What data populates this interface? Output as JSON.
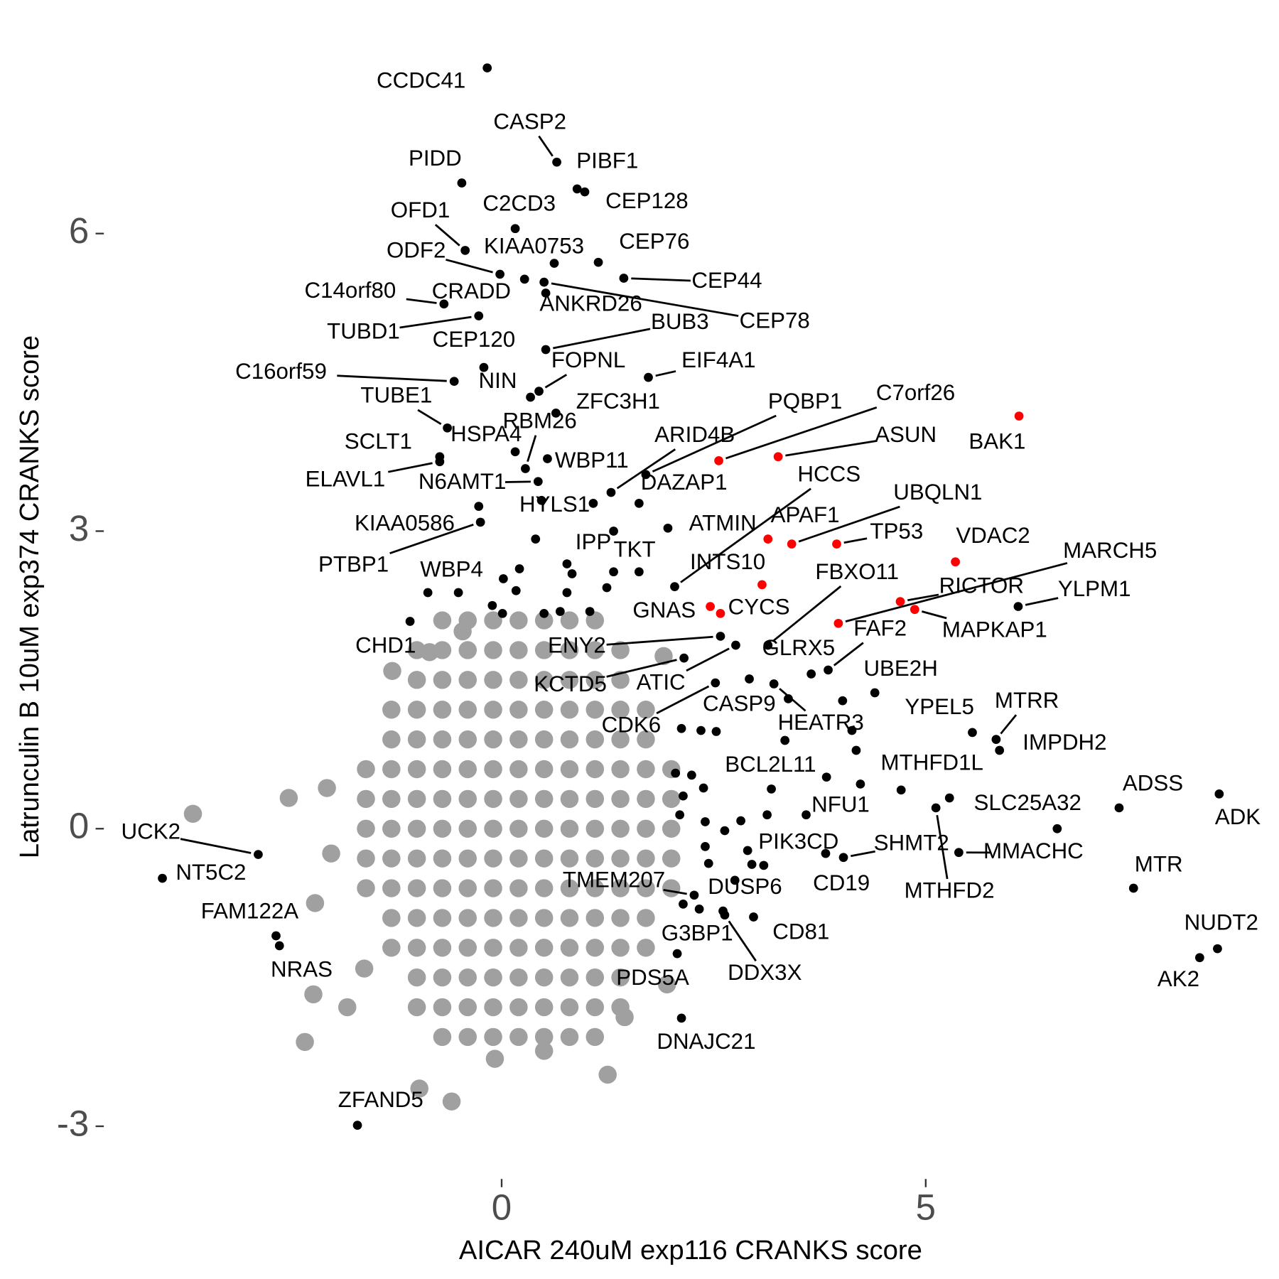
{
  "chart_data": {
    "type": "scatter",
    "xlabel": "AICAR 240uM exp116 CRANKS score",
    "ylabel": "Latrunculin B 10uM exp374 CRANKS score",
    "xlim": [
      -4.7,
      9.0
    ],
    "ylim": [
      -3.3,
      7.9
    ],
    "xticks": [
      0,
      5
    ],
    "yticks": [
      -3,
      0,
      3,
      6
    ],
    "grid": false,
    "series": [
      {
        "color": "#a0a0a0",
        "x": [
          -0.7,
          -0.4,
          -0.1,
          0.2,
          0.5,
          0.8,
          1.1,
          -1.0,
          -0.7,
          -0.4,
          -0.1,
          0.2,
          0.5,
          0.8,
          1.1,
          1.4,
          -1.0,
          -0.7,
          -0.4,
          -0.1,
          0.2,
          0.5,
          0.8,
          1.1,
          1.4,
          -1.3,
          -1.0,
          -0.7,
          -0.4,
          -0.1,
          0.2,
          0.5,
          0.8,
          1.1,
          1.4,
          1.7,
          -1.3,
          -1.0,
          -0.7,
          -0.4,
          -0.1,
          0.2,
          0.5,
          0.8,
          1.1,
          1.4,
          1.7,
          -1.6,
          -1.3,
          -1.0,
          -0.7,
          -0.4,
          -0.1,
          0.2,
          0.5,
          0.8,
          1.1,
          1.4,
          1.7,
          2.0,
          -1.6,
          -1.3,
          -1.0,
          -0.7,
          -0.4,
          -0.1,
          0.2,
          0.5,
          0.8,
          1.1,
          1.4,
          1.7,
          2.0,
          -1.6,
          -1.3,
          -1.0,
          -0.7,
          -0.4,
          -0.1,
          0.2,
          0.5,
          0.8,
          1.1,
          1.4,
          1.7,
          2.0,
          -1.6,
          -1.3,
          -1.0,
          -0.7,
          -0.4,
          -0.1,
          0.2,
          0.5,
          0.8,
          1.1,
          1.4,
          1.7,
          2.0,
          -1.6,
          -1.3,
          -1.0,
          -0.7,
          -0.4,
          -0.1,
          0.2,
          0.5,
          0.8,
          1.1,
          1.4,
          1.7,
          2.0,
          -1.3,
          -1.0,
          -0.7,
          -0.4,
          -0.1,
          0.2,
          0.5,
          0.8,
          1.1,
          1.4,
          1.7,
          -1.3,
          -1.0,
          -0.7,
          -0.4,
          -0.1,
          0.2,
          0.5,
          0.8,
          1.1,
          1.4,
          1.7,
          -1.0,
          -0.7,
          -0.4,
          -0.1,
          0.2,
          0.5,
          0.8,
          1.1,
          1.4,
          -1.0,
          -0.7,
          -0.4,
          -0.1,
          0.2,
          0.5,
          0.8,
          1.1,
          1.4,
          -0.7,
          -0.4,
          -0.1,
          0.2,
          0.5,
          0.8,
          1.1,
          -3.64,
          -2.51,
          -0.59,
          -0.97,
          1.25,
          -2.32,
          -2.22,
          -1.82,
          1.45,
          -1.29,
          -0.85,
          1.91,
          1.95,
          -2.2,
          -2.01,
          -2.06,
          -1.62,
          -0.08,
          0.5,
          -0.46
        ],
        "y": [
          2.1,
          2.1,
          2.1,
          2.1,
          2.1,
          2.1,
          2.1,
          1.8,
          1.8,
          1.8,
          1.8,
          1.8,
          1.8,
          1.8,
          1.8,
          1.8,
          1.5,
          1.5,
          1.5,
          1.5,
          1.5,
          1.5,
          1.5,
          1.5,
          1.5,
          1.2,
          1.2,
          1.2,
          1.2,
          1.2,
          1.2,
          1.2,
          1.2,
          1.2,
          1.2,
          1.2,
          0.9,
          0.9,
          0.9,
          0.9,
          0.9,
          0.9,
          0.9,
          0.9,
          0.9,
          0.9,
          0.9,
          0.6,
          0.6,
          0.6,
          0.6,
          0.6,
          0.6,
          0.6,
          0.6,
          0.6,
          0.6,
          0.6,
          0.6,
          0.6,
          0.3,
          0.3,
          0.3,
          0.3,
          0.3,
          0.3,
          0.3,
          0.3,
          0.3,
          0.3,
          0.3,
          0.3,
          0.3,
          0,
          0,
          0,
          0,
          0,
          0,
          0,
          0,
          0,
          0,
          0,
          0,
          0,
          -0.3,
          -0.3,
          -0.3,
          -0.3,
          -0.3,
          -0.3,
          -0.3,
          -0.3,
          -0.3,
          -0.3,
          -0.3,
          -0.3,
          -0.3,
          -0.6,
          -0.6,
          -0.6,
          -0.6,
          -0.6,
          -0.6,
          -0.6,
          -0.6,
          -0.6,
          -0.6,
          -0.6,
          -0.6,
          -0.6,
          -0.9,
          -0.9,
          -0.9,
          -0.9,
          -0.9,
          -0.9,
          -0.9,
          -0.9,
          -0.9,
          -0.9,
          -0.9,
          -1.2,
          -1.2,
          -1.2,
          -1.2,
          -1.2,
          -1.2,
          -1.2,
          -1.2,
          -1.2,
          -1.2,
          -1.2,
          -1.5,
          -1.5,
          -1.5,
          -1.5,
          -1.5,
          -1.5,
          -1.5,
          -1.5,
          -1.5,
          -1.8,
          -1.8,
          -1.8,
          -1.8,
          -1.8,
          -1.8,
          -1.8,
          -1.8,
          -1.8,
          -2.1,
          -2.1,
          -2.1,
          -2.1,
          -2.1,
          -2.1,
          -2.1,
          0.15,
          0.31,
          -2.75,
          -2.62,
          -2.48,
          -2.15,
          -1.67,
          -1.8,
          -1.9,
          1.59,
          1.78,
          1.74,
          -1.57,
          -0.75,
          -0.25,
          0.41,
          -1.41,
          -2.32,
          -2.24,
          1.99
        ]
      },
      {
        "color": "#000000",
        "x": [
          2.35,
          2.12,
          2.53,
          2.05,
          2.24,
          2.38,
          2.14,
          2.1,
          2.4,
          2.63,
          2.82,
          3.13,
          2.4,
          2.44,
          2.14,
          2.33,
          3.18,
          4.18,
          4.23,
          6.55,
          4.02,
          4.13,
          3.34,
          3.38,
          2.9,
          2.95,
          0.21,
          0.17,
          0.01,
          -0.11,
          -0.87,
          0.77,
          0.69,
          1.04,
          1.24,
          1.62,
          0.4,
          1.32,
          1.08,
          0.02,
          0.5,
          0.83
        ],
        "y": [
          0.99,
          1.01,
          0.98,
          0.56,
          0.54,
          0.41,
          0.33,
          0.14,
          0.07,
          -0.02,
          0.08,
          0.14,
          -0.18,
          -0.35,
          -0.76,
          -0.81,
          0.4,
          0.79,
          0.45,
          0.0,
          1.29,
          0.99,
          0.89,
          1.31,
          -0.22,
          -0.36,
          2.62,
          2.4,
          2.17,
          2.25,
          2.38,
          2.38,
          2.19,
          2.19,
          2.43,
          2.59,
          2.92,
          3.0,
          3.28,
          2.52,
          2.17,
          2.57
        ]
      },
      {
        "color": "#000000",
        "labels": [
          "CCDC41",
          "CASP2",
          "PIBF1",
          "CEP128",
          "PIDD",
          "C2CD3",
          "OFD1",
          "ODF2",
          "KIAA0753",
          "CEP76",
          "CEP44",
          "CEP78",
          "ANKRD26",
          "CRADD",
          "C14orf80",
          "TUBD1",
          "BUB3",
          "CEP120",
          "FOPNL",
          "NIN",
          "C16orf59",
          "EIF4A1",
          "TUBE1",
          "ZFC3H1",
          "SCLT1",
          "ELAVL1",
          "RBM26",
          "HSPA4",
          "WBP11",
          "N6AMT1",
          "HYLS1",
          "DAZAP1",
          "ARID4B",
          "PQBP1",
          "HCCS",
          "KIAA0586",
          "PTBP1",
          "ATMIN",
          "FAF2",
          "YLPM1",
          "IPP",
          "TKT",
          "FBXO11",
          "GLRX5",
          "WBP4",
          "CHD1",
          "ENY2",
          "KCTD5",
          "ATIC",
          "CDK6",
          "CASP9",
          "HEATR3",
          "UBE2H",
          "YPEL5",
          "MTRR",
          "IMPDH2",
          "BCL2L11",
          "NFU1",
          "MTHFD1L",
          "SLC25A32",
          "MTHFD2",
          "MMACHC",
          "ADSS",
          "ADK",
          "MTR",
          "NUDT2",
          "AK2",
          "PIK3CD",
          "CD19",
          "SHMT2",
          "TMEM207",
          "DUSP6",
          "G3BP1",
          "CD81",
          "DDX3X",
          "PDS5A",
          "DNAJC21",
          "UCK2",
          "NT5C2",
          "FAM122A",
          "NRAS",
          "ZFAND5"
        ],
        "x": [
          -0.17,
          0.65,
          0.89,
          0.98,
          -0.47,
          0.16,
          -0.43,
          -0.02,
          0.62,
          1.14,
          1.44,
          0.5,
          0.52,
          0.27,
          -0.68,
          -0.27,
          0.52,
          -0.21,
          0.44,
          0.34,
          -0.56,
          1.73,
          -0.64,
          0.64,
          -0.73,
          -0.73,
          0.28,
          0.16,
          0.54,
          0.43,
          0.47,
          1.62,
          1.29,
          1.7,
          2.04,
          -0.27,
          -0.25,
          1.96,
          3.85,
          6.09,
          0.77,
          1.32,
          3.14,
          3.65,
          -0.51,
          -1.08,
          2.58,
          2.15,
          2.76,
          2.52,
          2.92,
          3.21,
          4.4,
          5.55,
          5.83,
          5.87,
          3.83,
          3.59,
          4.71,
          5.28,
          5.12,
          5.39,
          7.28,
          8.46,
          7.45,
          8.44,
          8.23,
          3.09,
          3.82,
          4.03,
          2.27,
          2.75,
          2.61,
          2.97,
          2.63,
          2.07,
          2.12,
          -2.87,
          -4.0,
          -2.66,
          -2.62,
          -1.7
        ],
        "y": [
          7.67,
          6.72,
          6.45,
          6.42,
          6.51,
          6.05,
          5.83,
          5.59,
          5.7,
          5.71,
          5.55,
          5.51,
          5.4,
          5.54,
          5.29,
          5.17,
          4.83,
          4.65,
          4.41,
          4.35,
          4.51,
          4.55,
          4.04,
          4.19,
          3.75,
          3.7,
          3.63,
          3.8,
          3.73,
          3.5,
          3.31,
          3.28,
          3.39,
          3.57,
          2.44,
          3.25,
          3.09,
          3.03,
          1.6,
          2.24,
          2.67,
          2.59,
          1.85,
          1.56,
          2.38,
          2.09,
          1.94,
          1.72,
          1.85,
          1.47,
          1.51,
          1.46,
          1.37,
          0.97,
          0.9,
          0.79,
          0.52,
          0.14,
          0.39,
          0.31,
          0.21,
          -0.24,
          0.21,
          0.35,
          -0.6,
          -1.21,
          -1.3,
          -0.37,
          -0.25,
          -0.29,
          -0.67,
          -0.52,
          -0.83,
          -0.89,
          -0.87,
          -1.26,
          -1.91,
          -0.26,
          -0.5,
          -1.08,
          -1.18,
          -2.99
        ]
      },
      {
        "color": "#ff0000",
        "labels": [
          "C7orf26",
          "ASUN",
          "BAK1",
          "UBQLN1",
          "APAF1",
          "TP53",
          "VDAC2",
          "MARCH5",
          "RICTOR",
          "MAPKAP1",
          "INTS10",
          "GNAS",
          "CYCS"
        ],
        "x": [
          2.56,
          3.26,
          6.1,
          3.42,
          3.14,
          3.95,
          5.35,
          3.97,
          4.7,
          4.87,
          3.07,
          2.46,
          2.58
        ],
        "y": [
          3.71,
          3.75,
          4.16,
          2.87,
          2.92,
          2.87,
          2.69,
          2.07,
          2.29,
          2.21,
          2.46,
          2.24,
          2.17
        ]
      }
    ]
  }
}
